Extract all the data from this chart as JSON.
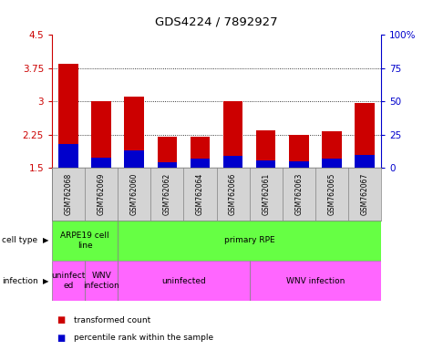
{
  "title": "GDS4224 / 7892927",
  "samples": [
    "GSM762068",
    "GSM762069",
    "GSM762060",
    "GSM762062",
    "GSM762064",
    "GSM762066",
    "GSM762061",
    "GSM762063",
    "GSM762065",
    "GSM762067"
  ],
  "transformed_count": [
    3.85,
    3.0,
    3.1,
    2.2,
    2.2,
    3.0,
    2.35,
    2.25,
    2.32,
    2.97
  ],
  "percentile_rank": [
    18,
    8,
    13,
    4,
    7,
    9,
    6,
    5,
    7,
    10
  ],
  "ylim_left": [
    1.5,
    4.5
  ],
  "ylim_right": [
    0,
    100
  ],
  "yticks_left": [
    1.5,
    2.25,
    3.0,
    3.75,
    4.5
  ],
  "yticks_right": [
    0,
    25,
    50,
    75,
    100
  ],
  "ytick_labels_left": [
    "1.5",
    "2.25",
    "3",
    "3.75",
    "4.5"
  ],
  "ytick_labels_right": [
    "0",
    "25",
    "50",
    "75",
    "100%"
  ],
  "bar_color_red": "#cc0000",
  "bar_color_blue": "#0000cc",
  "bar_width": 0.6,
  "left_axis_color": "#cc0000",
  "right_axis_color": "#0000cc",
  "cell_type_label": "cell type",
  "infection_label": "infection",
  "cell_groups": [
    {
      "label": "ARPE19 cell\nline",
      "start": 0,
      "end": 2
    },
    {
      "label": "primary RPE",
      "start": 2,
      "end": 10
    }
  ],
  "inf_groups": [
    {
      "label": "uninfect\ned",
      "start": 0,
      "end": 1
    },
    {
      "label": "WNV\ninfection",
      "start": 1,
      "end": 2
    },
    {
      "label": "uninfected",
      "start": 2,
      "end": 6
    },
    {
      "label": "WNV infection",
      "start": 6,
      "end": 10
    }
  ],
  "cell_color": "#66ff44",
  "inf_color": "#ff66ff",
  "sample_bg": "#d4d4d4",
  "legend1": "transformed count",
  "legend2": "percentile rank within the sample"
}
